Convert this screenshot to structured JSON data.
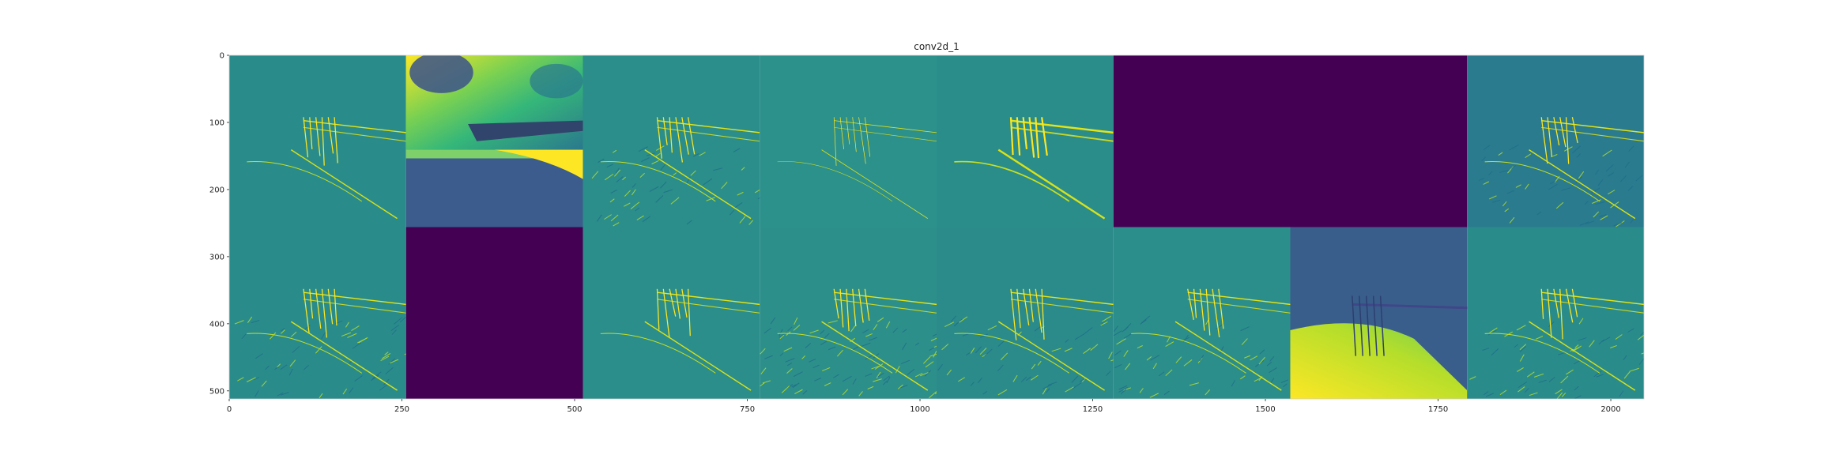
{
  "chart_data": {
    "type": "heatmap",
    "title": "conv2d_1",
    "xlabel": "",
    "ylabel": "",
    "colormap": "viridis",
    "grid": false,
    "xlim": [
      0,
      2048
    ],
    "ylim": [
      512,
      0
    ],
    "xticks": [
      0,
      250,
      500,
      750,
      1000,
      1250,
      1500,
      1750,
      2000
    ],
    "yticks": [
      0,
      100,
      200,
      300,
      400,
      500
    ],
    "grid_layout": {
      "rows": 2,
      "cols": 8
    },
    "tile_size": 256,
    "tiles": [
      {
        "row": 0,
        "col": 0,
        "background": "#2a8c8a",
        "style": "edges-sparse"
      },
      {
        "row": 0,
        "col": 1,
        "background": "#7ed06a",
        "style": "gradient-blob"
      },
      {
        "row": 0,
        "col": 2,
        "background": "#2b8e8a",
        "style": "edges-textured-lower"
      },
      {
        "row": 0,
        "col": 3,
        "background": "#2c908b",
        "style": "edges-faint"
      },
      {
        "row": 0,
        "col": 4,
        "background": "#2a8d8a",
        "style": "edges-strong"
      },
      {
        "row": 0,
        "col": 5,
        "background": "#440154",
        "style": "flat"
      },
      {
        "row": 0,
        "col": 6,
        "background": "#440154",
        "style": "flat"
      },
      {
        "row": 0,
        "col": 7,
        "background": "#2a7b8d",
        "style": "edges-textured-lower"
      },
      {
        "row": 1,
        "col": 0,
        "background": "#2a8c8a",
        "style": "edges-textured-lower"
      },
      {
        "row": 1,
        "col": 1,
        "background": "#440154",
        "style": "flat"
      },
      {
        "row": 1,
        "col": 2,
        "background": "#2b8e8a",
        "style": "edges-sparse"
      },
      {
        "row": 1,
        "col": 3,
        "background": "#2d8f8a",
        "style": "edges-dense"
      },
      {
        "row": 1,
        "col": 4,
        "background": "#2b8b8a",
        "style": "edges-textured-lower"
      },
      {
        "row": 1,
        "col": 5,
        "background": "#2c8e8a",
        "style": "edges-textured-lower"
      },
      {
        "row": 1,
        "col": 6,
        "background": "#3a5e8c",
        "style": "bright-lower"
      },
      {
        "row": 1,
        "col": 7,
        "background": "#2a8c8a",
        "style": "edges-textured-lower"
      }
    ]
  }
}
